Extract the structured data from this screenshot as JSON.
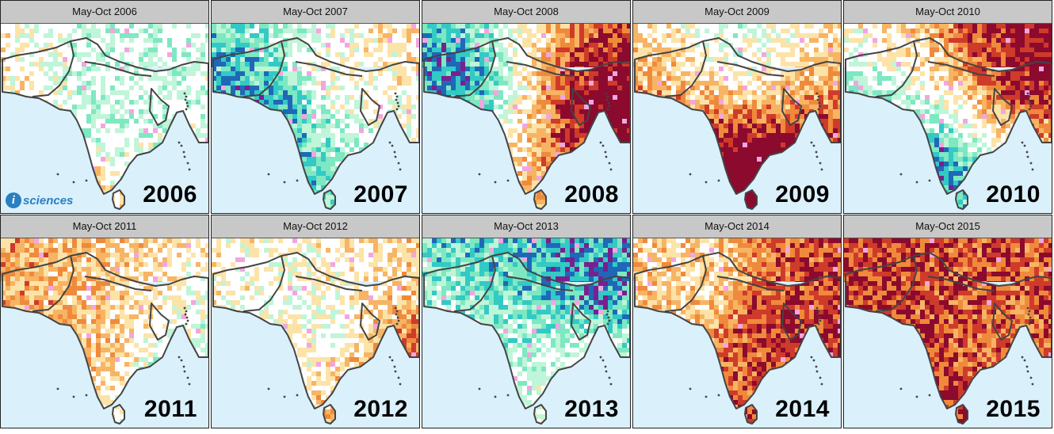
{
  "panels": [
    {
      "title": "May-Oct 2006",
      "year": "2006",
      "seed": 3,
      "bias": 0.05,
      "has_logo": true
    },
    {
      "title": "May-Oct 2007",
      "year": "2007",
      "seed": 7,
      "bias": -0.35,
      "has_logo": false
    },
    {
      "title": "May-Oct 2008",
      "year": "2008",
      "seed": 11,
      "bias": 0.15,
      "has_logo": false
    },
    {
      "title": "May-Oct 2009",
      "year": "2009",
      "seed": 13,
      "bias": 0.55,
      "has_logo": false
    },
    {
      "title": "May-Oct 2010",
      "year": "2010",
      "seed": 17,
      "bias": 0.0,
      "has_logo": false
    },
    {
      "title": "May-Oct 2011",
      "year": "2011",
      "seed": 19,
      "bias": 0.05,
      "has_logo": false
    },
    {
      "title": "May-Oct 2012",
      "year": "2012",
      "seed": 23,
      "bias": 0.3,
      "has_logo": false
    },
    {
      "title": "May-Oct 2013",
      "year": "2013",
      "seed": 29,
      "bias": -0.4,
      "has_logo": false
    },
    {
      "title": "May-Oct 2014",
      "year": "2014",
      "seed": 31,
      "bias": 0.5,
      "has_logo": false
    },
    {
      "title": "May-Oct 2015",
      "year": "2015",
      "seed": 37,
      "bias": 0.7,
      "has_logo": false
    }
  ],
  "logo": {
    "mark": "i",
    "text": "sciences"
  },
  "colors": {
    "ocean": "#daf0fb",
    "border": "#444444",
    "dry": [
      "#fce3a8",
      "#f7b464",
      "#ef8a3c",
      "#cf3b2a",
      "#8b0a2e"
    ],
    "neutral": "#ffffff",
    "wet": [
      "#bff5d8",
      "#7de8c2",
      "#33c9c5",
      "#1f68b8",
      "#7a1f8f"
    ],
    "accent_pink": "#f2a6e0"
  }
}
